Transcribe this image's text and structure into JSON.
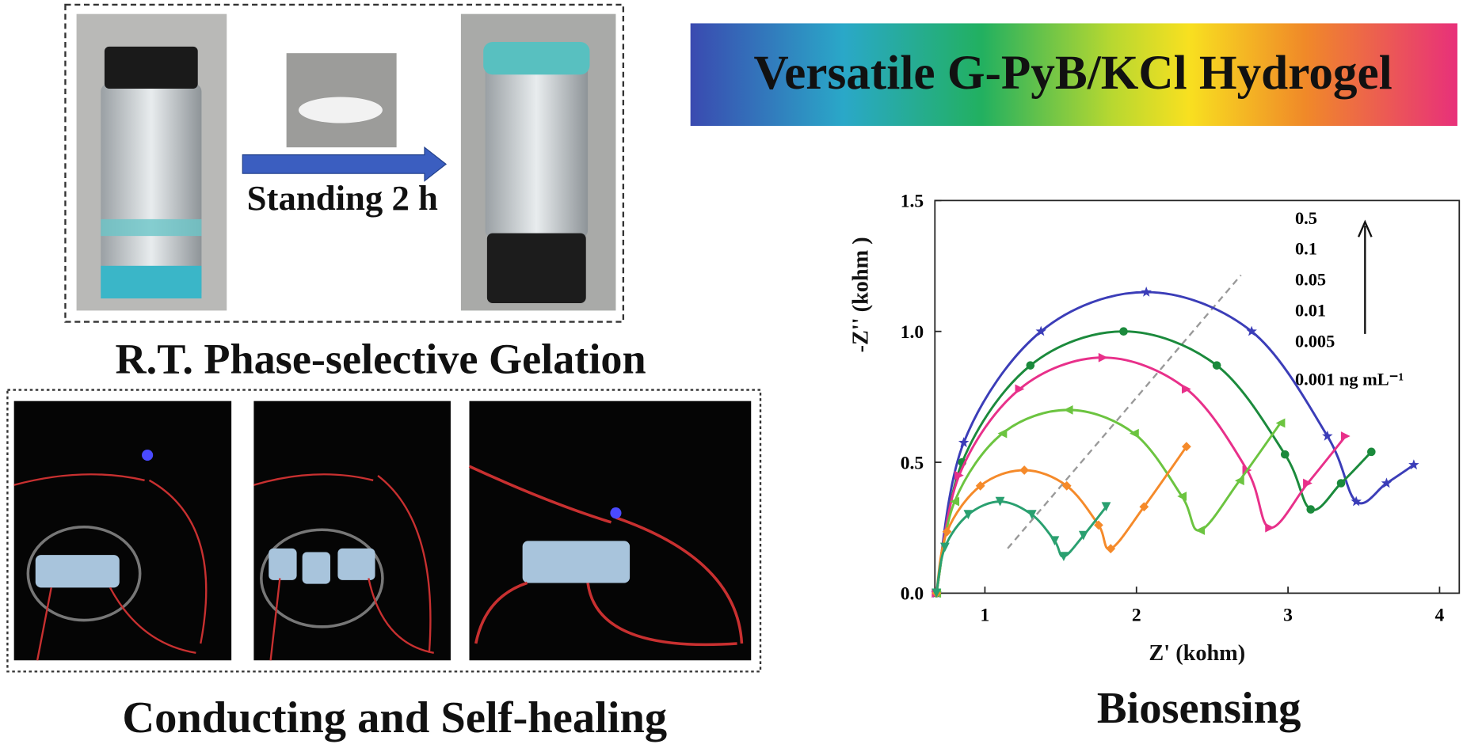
{
  "header": {
    "title": "Versatile G-PyB/KCl Hydrogel"
  },
  "panels": {
    "gelation": {
      "arrow_label": "Standing 2 h",
      "caption": "R.T. Phase-selective Gelation"
    },
    "conducting": {
      "caption": "Conducting and Self-healing"
    },
    "biosensing": {
      "caption": "Biosensing"
    }
  },
  "chart_data": {
    "type": "line",
    "x_label": "Z' (kohm)",
    "y_label": "-Z'' (kohm )",
    "xlim": [
      0.67,
      4.13
    ],
    "ylim": [
      0,
      1.5
    ],
    "xticks": [
      1,
      2,
      3,
      4
    ],
    "yticks": [
      {
        "value": 0,
        "label": "0.0"
      },
      0.5,
      {
        "value": 1,
        "label": "1.0"
      },
      {
        "value": 1.5,
        "label": "1.5"
      }
    ],
    "series": [
      {
        "name": "0.5",
        "color": "#3b3db8",
        "marker": "star",
        "x": [
          0.68,
          0.86,
          1.37,
          2.065,
          2.76,
          3.26,
          3.45,
          3.65,
          3.83
        ],
        "values": [
          0,
          0.575,
          1.0,
          1.15,
          1.0,
          0.6,
          0.35,
          0.42,
          0.49
        ]
      },
      {
        "name": "0.1",
        "color": "#1b8a3c",
        "marker": "circle",
        "x": [
          0.68,
          0.85,
          1.3,
          1.915,
          2.53,
          2.98,
          3.15,
          3.35,
          3.55
        ],
        "values": [
          0,
          0.5,
          0.87,
          1.0,
          0.87,
          0.53,
          0.32,
          0.42,
          0.54
        ]
      },
      {
        "name": "0.05",
        "color": "#e8308a",
        "marker": "triangle-right",
        "x": [
          0.68,
          0.83,
          1.23,
          1.78,
          2.33,
          2.73,
          2.88,
          3.13,
          3.38
        ],
        "values": [
          0,
          0.45,
          0.78,
          0.9,
          0.78,
          0.47,
          0.25,
          0.42,
          0.6
        ]
      },
      {
        "name": "0.01",
        "color": "#6cc440",
        "marker": "triangle-left",
        "x": [
          0.68,
          0.8,
          1.115,
          1.55,
          1.985,
          2.3,
          2.42,
          2.68,
          2.95
        ],
        "values": [
          0,
          0.35,
          0.61,
          0.7,
          0.61,
          0.37,
          0.24,
          0.43,
          0.65
        ]
      },
      {
        "name": "0.005",
        "color": "#f58a2a",
        "marker": "diamond",
        "x": [
          0.68,
          0.75,
          0.97,
          1.26,
          1.54,
          1.75,
          1.83,
          2.05,
          2.33
        ],
        "values": [
          0,
          0.235,
          0.41,
          0.47,
          0.41,
          0.26,
          0.17,
          0.33,
          0.56
        ]
      },
      {
        "name": "0.001 ng mL⁻¹",
        "color": "#2aa070",
        "marker": "triangle-down",
        "x": [
          0.68,
          0.736,
          0.89,
          1.1,
          1.31,
          1.46,
          1.52,
          1.65,
          1.8
        ],
        "values": [
          0,
          0.175,
          0.3,
          0.35,
          0.3,
          0.2,
          0.14,
          0.22,
          0.33
        ]
      }
    ]
  }
}
